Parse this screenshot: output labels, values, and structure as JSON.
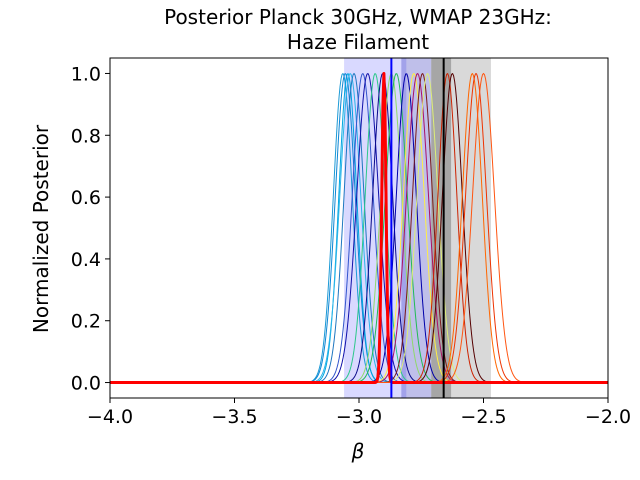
{
  "chart_data": {
    "type": "line",
    "title_lines": [
      "Posterior Planck 30GHz, WMAP 23GHz:",
      "Haze Filament"
    ],
    "xlabel": "β",
    "ylabel": "Normalized Posterior",
    "xlim": [
      -4.0,
      -2.0
    ],
    "ylim": [
      -0.05,
      1.05
    ],
    "x_ticks": [
      -4.0,
      -3.5,
      -3.0,
      -2.5,
      -2.0
    ],
    "x_tick_labels": [
      "−4.0",
      "−3.5",
      "−3.0",
      "−2.5",
      "−2.0"
    ],
    "y_ticks": [
      0.0,
      0.2,
      0.4,
      0.6,
      0.8,
      1.0
    ],
    "y_tick_labels": [
      "0.0",
      "0.2",
      "0.4",
      "0.6",
      "0.8",
      "1.0"
    ],
    "grid": false,
    "bands": [
      {
        "x0": -3.06,
        "x1": -2.81,
        "color": "#0000ff",
        "alpha": 0.15
      },
      {
        "x0": -2.83,
        "x1": -2.71,
        "color": "#0000aa",
        "alpha": 0.25
      },
      {
        "x0": -2.71,
        "x1": -2.63,
        "color": "#000000",
        "alpha": 0.35
      },
      {
        "x0": -2.63,
        "x1": -2.47,
        "color": "#000000",
        "alpha": 0.15
      }
    ],
    "vertical_lines": [
      {
        "x": -2.87,
        "color": "#0000ff",
        "width": 2
      },
      {
        "x": -2.66,
        "color": "#000000",
        "width": 2
      }
    ],
    "series": [
      {
        "mu": -3.065,
        "sigma": 0.038,
        "color": "#1c9ad6",
        "width": 1
      },
      {
        "mu": -3.055,
        "sigma": 0.04,
        "color": "#0e86d4",
        "width": 1
      },
      {
        "mu": -3.045,
        "sigma": 0.036,
        "color": "#00a6e0",
        "width": 1
      },
      {
        "mu": -3.035,
        "sigma": 0.042,
        "color": "#2bb5ea",
        "width": 1
      },
      {
        "mu": -3.02,
        "sigma": 0.04,
        "color": "#1f77c0",
        "width": 1
      },
      {
        "mu": -2.985,
        "sigma": 0.042,
        "color": "#3355cc",
        "width": 1
      },
      {
        "mu": -2.965,
        "sigma": 0.044,
        "color": "#1111aa",
        "width": 1
      },
      {
        "mu": -2.935,
        "sigma": 0.04,
        "color": "#2cc88a",
        "width": 1
      },
      {
        "mu": -2.905,
        "sigma": 0.04,
        "color": "#0a0a8a",
        "width": 1
      },
      {
        "mu": -2.87,
        "sigma": 0.042,
        "color": "#8fd96b",
        "width": 1
      },
      {
        "mu": -2.85,
        "sigma": 0.044,
        "color": "#22bb55",
        "width": 1
      },
      {
        "mu": -2.81,
        "sigma": 0.04,
        "color": "#0000aa",
        "width": 1
      },
      {
        "mu": -2.78,
        "sigma": 0.042,
        "color": "#ffee44",
        "width": 1
      },
      {
        "mu": -2.765,
        "sigma": 0.044,
        "color": "#aa1166",
        "width": 1
      },
      {
        "mu": -2.745,
        "sigma": 0.04,
        "color": "#7a1a1a",
        "width": 1
      },
      {
        "mu": -2.725,
        "sigma": 0.042,
        "color": "#ddee77",
        "width": 1
      },
      {
        "mu": -2.645,
        "sigma": 0.038,
        "color": "#cc2200",
        "width": 1
      },
      {
        "mu": -2.625,
        "sigma": 0.04,
        "color": "#550000",
        "width": 1
      },
      {
        "mu": -2.545,
        "sigma": 0.04,
        "color": "#ff6600",
        "width": 1
      },
      {
        "mu": -2.53,
        "sigma": 0.042,
        "color": "#ee3300",
        "width": 1
      },
      {
        "mu": -2.5,
        "sigma": 0.044,
        "color": "#ff5511",
        "width": 1
      },
      {
        "mu": -2.9,
        "sigma": 0.0085,
        "color": "#ff0000",
        "width": 3
      }
    ]
  }
}
